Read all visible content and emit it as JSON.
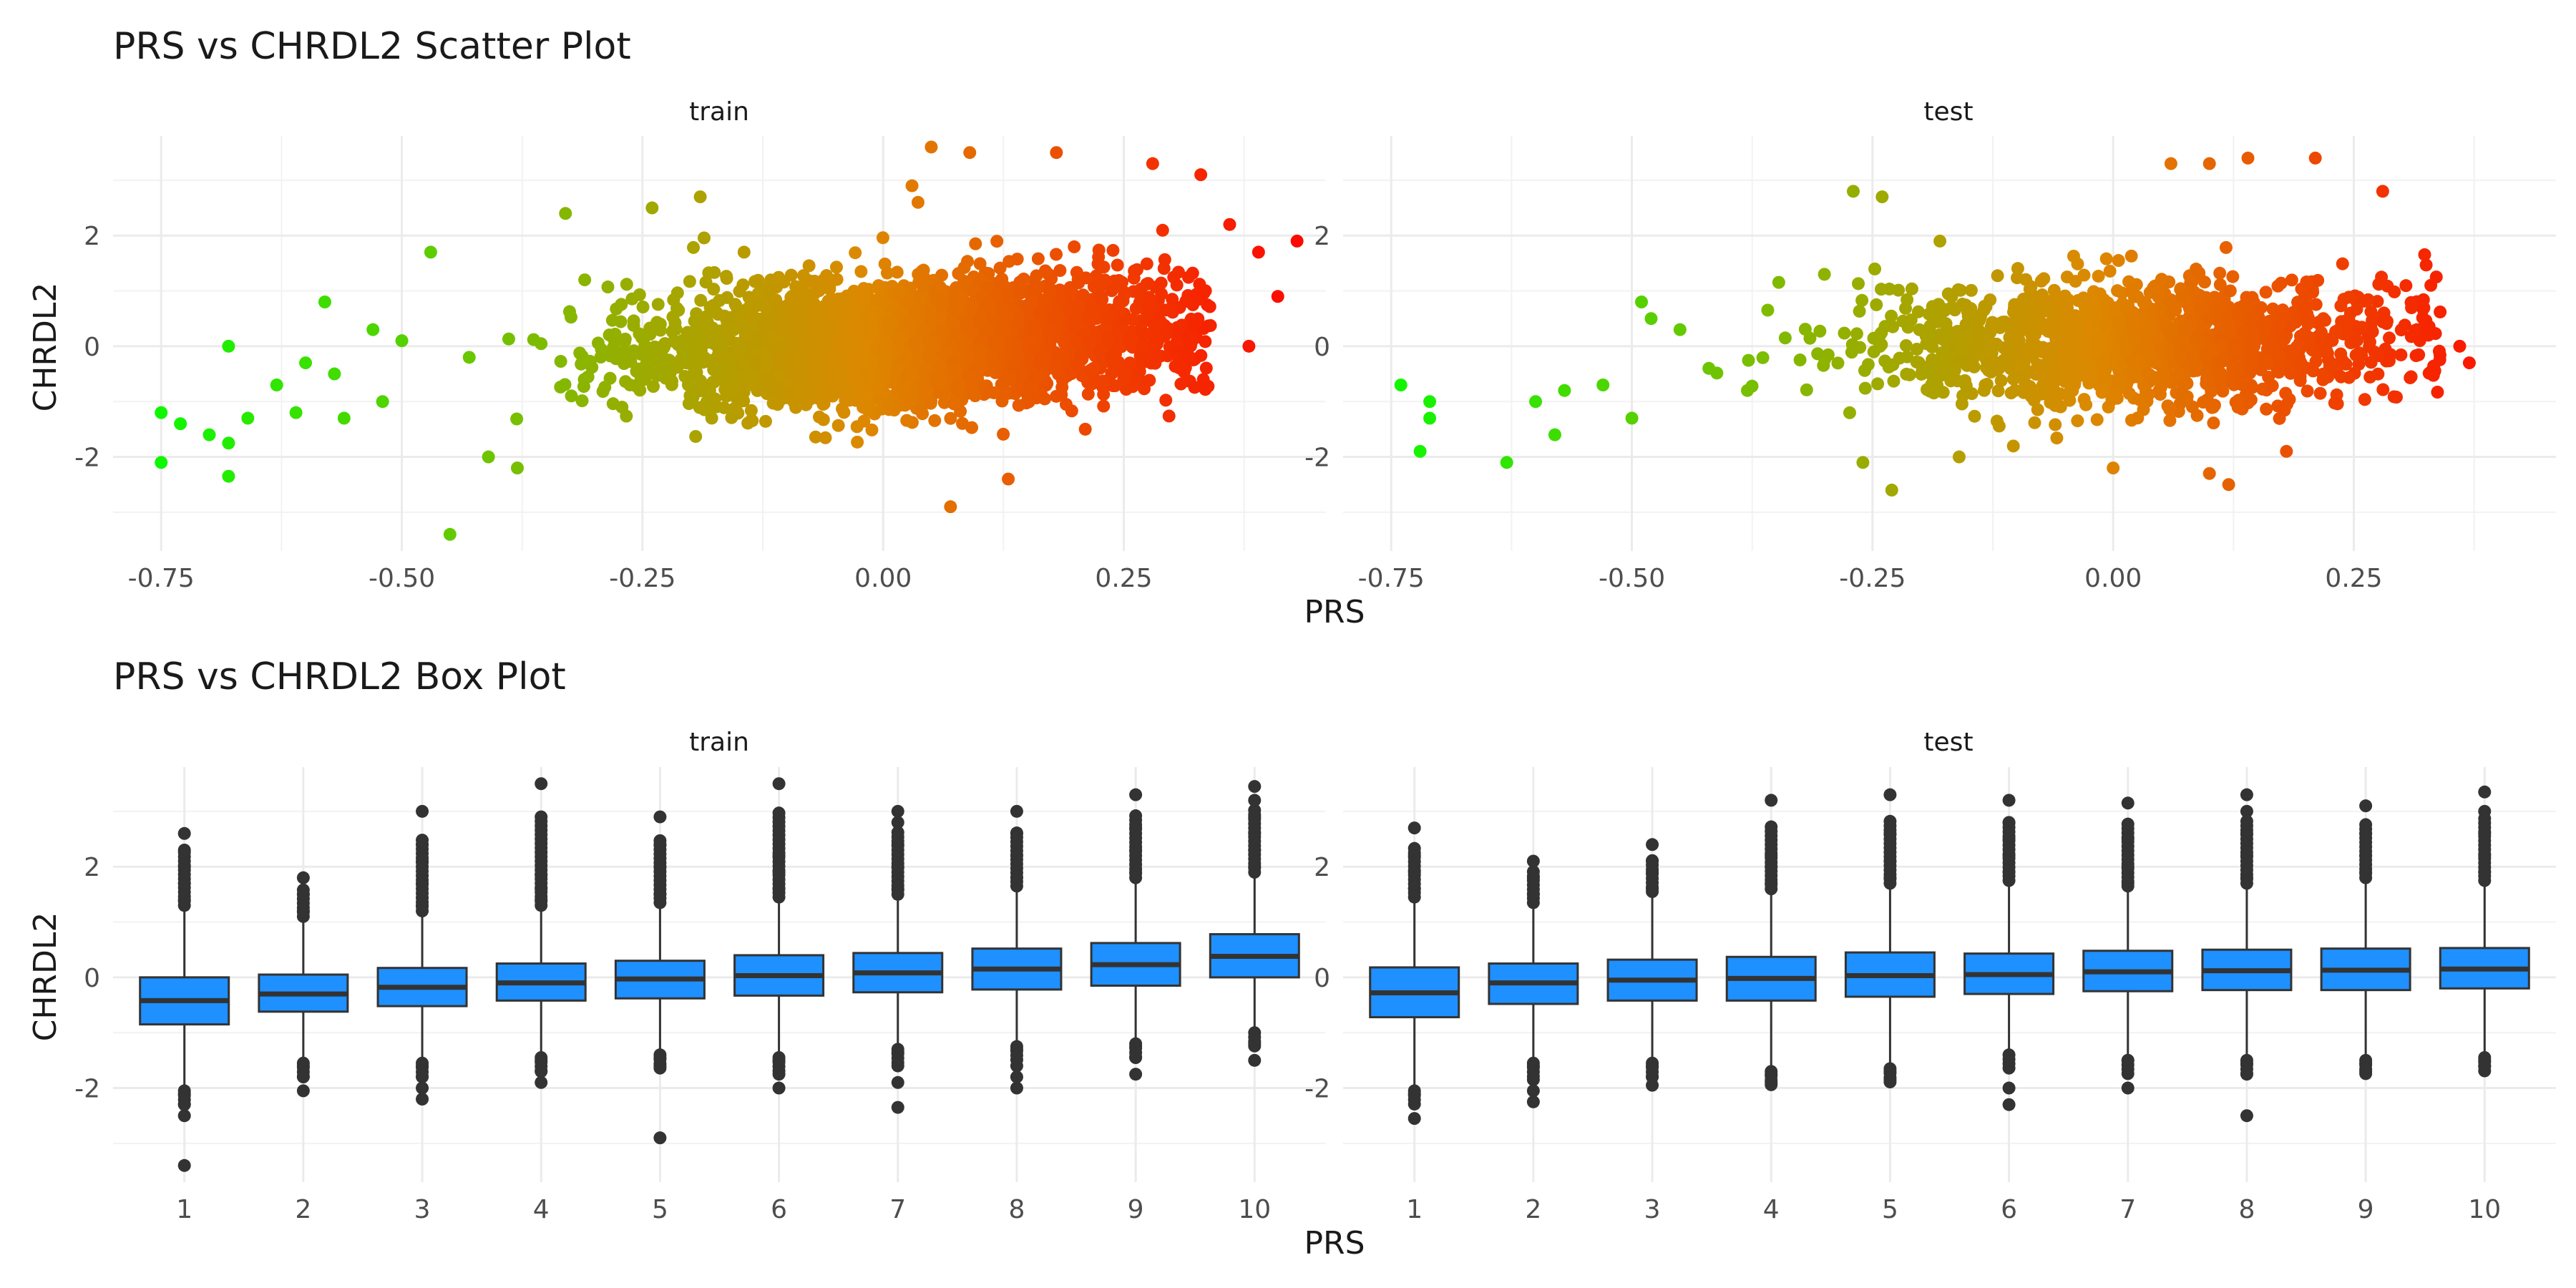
{
  "scatter": {
    "title": "PRS vs CHRDL2 Scatter Plot",
    "xlabel": "PRS",
    "ylabel": "CHRDL2",
    "x_ticks": [
      "-0.75",
      "-0.50",
      "-0.25",
      "0.00",
      "0.25"
    ],
    "y_ticks": [
      "-2",
      "0",
      "2"
    ]
  },
  "box": {
    "title": "PRS vs CHRDL2 Box Plot",
    "xlabel": "PRS",
    "ylabel": "CHRDL2",
    "x_ticks": [
      "1",
      "2",
      "3",
      "4",
      "5",
      "6",
      "7",
      "8",
      "9",
      "10"
    ],
    "y_ticks": [
      "-2",
      "0",
      "2"
    ]
  },
  "colors": {
    "box_fill": "#1E90FF",
    "box_line": "#333333",
    "outlier": "#333333",
    "gradient_low": "#00FF00",
    "gradient_mid": "#DD8800",
    "gradient_high": "#FF0000",
    "grid": "#EBEBEB"
  },
  "chart_data": [
    {
      "type": "scatter",
      "title": "PRS vs CHRDL2 Scatter Plot",
      "xlabel": "PRS",
      "ylabel": "CHRDL2",
      "facet": "train",
      "xlim": [
        -0.8,
        0.46
      ],
      "ylim": [
        -3.7,
        3.8
      ],
      "grid": true,
      "color_by": "x",
      "core_point_count_approx": 7000,
      "points": [
        [
          -0.75,
          -2.1
        ],
        [
          -0.75,
          -1.2
        ],
        [
          -0.73,
          -1.4
        ],
        [
          -0.7,
          -1.6
        ],
        [
          -0.68,
          0.0
        ],
        [
          -0.68,
          -1.75
        ],
        [
          -0.68,
          -2.35
        ],
        [
          -0.66,
          -1.3
        ],
        [
          -0.63,
          -0.7
        ],
        [
          -0.61,
          -1.2
        ],
        [
          -0.6,
          -0.3
        ],
        [
          -0.58,
          0.8
        ],
        [
          -0.57,
          -0.5
        ],
        [
          -0.56,
          -1.3
        ],
        [
          -0.53,
          0.3
        ],
        [
          -0.52,
          -1.0
        ],
        [
          -0.5,
          0.1
        ],
        [
          -0.47,
          1.7
        ],
        [
          -0.45,
          -3.4
        ],
        [
          -0.43,
          -0.2
        ],
        [
          -0.41,
          -2.0
        ],
        [
          -0.38,
          -2.2
        ],
        [
          -0.33,
          2.4
        ],
        [
          -0.31,
          1.2
        ],
        [
          -0.24,
          2.5
        ],
        [
          -0.19,
          2.7
        ],
        [
          0.03,
          2.9
        ],
        [
          0.05,
          3.6
        ],
        [
          0.09,
          3.5
        ],
        [
          0.18,
          3.5
        ],
        [
          0.28,
          3.3
        ],
        [
          0.33,
          3.1
        ],
        [
          0.36,
          2.2
        ],
        [
          0.39,
          1.7
        ],
        [
          0.43,
          1.9
        ],
        [
          0.41,
          0.9
        ],
        [
          0.38,
          0.0
        ],
        [
          0.07,
          -2.9
        ],
        [
          0.13,
          -2.4
        ],
        [
          0.21,
          -1.5
        ]
      ]
    },
    {
      "type": "scatter",
      "title": "PRS vs CHRDL2 Scatter Plot",
      "xlabel": "PRS",
      "ylabel": "CHRDL2",
      "facet": "test",
      "xlim": [
        -0.8,
        0.46
      ],
      "ylim": [
        -3.7,
        3.8
      ],
      "grid": true,
      "color_by": "x",
      "core_point_count_approx": 3500,
      "points": [
        [
          -0.74,
          -0.7
        ],
        [
          -0.71,
          -1.0
        ],
        [
          -0.71,
          -1.3
        ],
        [
          -0.72,
          -1.9
        ],
        [
          -0.63,
          -2.1
        ],
        [
          -0.6,
          -1.0
        ],
        [
          -0.58,
          -1.6
        ],
        [
          -0.57,
          -0.8
        ],
        [
          -0.53,
          -0.7
        ],
        [
          -0.5,
          -1.3
        ],
        [
          -0.49,
          0.8
        ],
        [
          -0.48,
          0.5
        ],
        [
          -0.45,
          0.3
        ],
        [
          -0.42,
          -0.4
        ],
        [
          -0.38,
          -0.8
        ],
        [
          -0.3,
          1.3
        ],
        [
          -0.27,
          2.8
        ],
        [
          -0.24,
          2.7
        ],
        [
          -0.26,
          -2.1
        ],
        [
          -0.23,
          -2.6
        ],
        [
          -0.18,
          1.9
        ],
        [
          -0.16,
          -2.0
        ],
        [
          0.06,
          3.3
        ],
        [
          0.1,
          3.3
        ],
        [
          0.14,
          3.4
        ],
        [
          0.21,
          3.4
        ],
        [
          0.28,
          2.8
        ],
        [
          0.33,
          1.1
        ],
        [
          0.36,
          0.0
        ],
        [
          0.37,
          -0.3
        ],
        [
          0.1,
          -2.3
        ],
        [
          0.12,
          -2.5
        ],
        [
          0.0,
          -2.2
        ],
        [
          0.18,
          -1.9
        ]
      ]
    },
    {
      "type": "box",
      "title": "PRS vs CHRDL2 Box Plot",
      "xlabel": "PRS",
      "ylabel": "CHRDL2",
      "facet": "train",
      "categories": [
        "1",
        "2",
        "3",
        "4",
        "5",
        "6",
        "7",
        "8",
        "9",
        "10"
      ],
      "ylim": [
        -3.7,
        3.8
      ],
      "boxes": [
        {
          "q1": -0.85,
          "median": -0.42,
          "q3": 0.0,
          "lower_whisker": -2.0,
          "upper_whisker": 1.25,
          "outliers_low": [
            -2.1,
            -2.3,
            -2.5,
            -3.4
          ],
          "outliers_high": [
            1.4,
            1.7,
            2.0,
            2.3,
            2.6
          ]
        },
        {
          "q1": -0.62,
          "median": -0.3,
          "q3": 0.05,
          "lower_whisker": -1.5,
          "upper_whisker": 1.05,
          "outliers_low": [
            -1.6,
            -1.8,
            -2.05
          ],
          "outliers_high": [
            1.2,
            1.5,
            1.8
          ]
        },
        {
          "q1": -0.52,
          "median": -0.18,
          "q3": 0.17,
          "lower_whisker": -1.5,
          "upper_whisker": 1.15,
          "outliers_low": [
            -1.6,
            -1.8,
            -2.0,
            -2.2
          ],
          "outliers_high": [
            1.3,
            1.7,
            2.1,
            2.4,
            3.0
          ]
        },
        {
          "q1": -0.42,
          "median": -0.1,
          "q3": 0.25,
          "lower_whisker": -1.4,
          "upper_whisker": 1.25,
          "outliers_low": [
            -1.5,
            -1.7,
            -1.9
          ],
          "outliers_high": [
            1.4,
            1.6,
            1.85,
            3.5
          ]
        },
        {
          "q1": -0.38,
          "median": -0.03,
          "q3": 0.3,
          "lower_whisker": -1.35,
          "upper_whisker": 1.3,
          "outliers_low": [
            -1.45,
            -1.6,
            -2.9
          ],
          "outliers_high": [
            1.5,
            2.0,
            2.4,
            2.9
          ]
        },
        {
          "q1": -0.33,
          "median": 0.03,
          "q3": 0.4,
          "lower_whisker": -1.4,
          "upper_whisker": 1.4,
          "outliers_low": [
            -1.5,
            -1.75,
            -2.0
          ],
          "outliers_high": [
            1.6,
            1.9,
            2.2,
            3.5
          ]
        },
        {
          "q1": -0.27,
          "median": 0.08,
          "q3": 0.44,
          "lower_whisker": -1.25,
          "upper_whisker": 1.45,
          "outliers_low": [
            -1.35,
            -1.6,
            -1.9,
            -2.35
          ],
          "outliers_high": [
            1.6,
            2.0,
            2.4,
            2.8,
            3.0
          ]
        },
        {
          "q1": -0.22,
          "median": 0.15,
          "q3": 0.52,
          "lower_whisker": -1.2,
          "upper_whisker": 1.6,
          "outliers_low": [
            -1.3,
            -1.6,
            -1.8,
            -2.0
          ],
          "outliers_high": [
            1.8,
            2.2,
            2.6,
            3.0
          ]
        },
        {
          "q1": -0.15,
          "median": 0.23,
          "q3": 0.62,
          "lower_whisker": -1.15,
          "upper_whisker": 1.75,
          "outliers_low": [
            -1.25,
            -1.45,
            -1.75
          ],
          "outliers_high": [
            1.9,
            2.3,
            2.7,
            3.3
          ]
        },
        {
          "q1": 0.0,
          "median": 0.38,
          "q3": 0.78,
          "lower_whisker": -0.95,
          "upper_whisker": 1.85,
          "outliers_low": [
            -1.2,
            -1.5
          ],
          "outliers_high": [
            2.0,
            2.3,
            2.6,
            2.9,
            3.2,
            3.45
          ]
        }
      ]
    },
    {
      "type": "box",
      "title": "PRS vs CHRDL2 Box Plot",
      "xlabel": "PRS",
      "ylabel": "CHRDL2",
      "facet": "test",
      "categories": [
        "1",
        "2",
        "3",
        "4",
        "5",
        "6",
        "7",
        "8",
        "9",
        "10"
      ],
      "ylim": [
        -3.7,
        3.8
      ],
      "boxes": [
        {
          "q1": -0.72,
          "median": -0.28,
          "q3": 0.18,
          "lower_whisker": -2.0,
          "upper_whisker": 1.4,
          "outliers_low": [
            -2.1,
            -2.55
          ],
          "outliers_high": [
            1.6,
            1.9,
            2.2,
            2.7
          ]
        },
        {
          "q1": -0.48,
          "median": -0.1,
          "q3": 0.25,
          "lower_whisker": -1.5,
          "upper_whisker": 1.3,
          "outliers_low": [
            -1.6,
            -1.85,
            -2.05,
            -2.25
          ],
          "outliers_high": [
            1.5,
            1.8,
            2.1
          ]
        },
        {
          "q1": -0.42,
          "median": -0.05,
          "q3": 0.32,
          "lower_whisker": -1.5,
          "upper_whisker": 1.5,
          "outliers_low": [
            -1.6,
            -1.8,
            -1.95
          ],
          "outliers_high": [
            1.6,
            1.9,
            2.1,
            2.4
          ]
        },
        {
          "q1": -0.42,
          "median": -0.02,
          "q3": 0.37,
          "lower_whisker": -1.65,
          "upper_whisker": 1.55,
          "outliers_low": [
            -1.75,
            -1.9
          ],
          "outliers_high": [
            1.7,
            2.0,
            2.2,
            3.2
          ]
        },
        {
          "q1": -0.35,
          "median": 0.03,
          "q3": 0.45,
          "lower_whisker": -1.6,
          "upper_whisker": 1.65,
          "outliers_low": [
            -1.7,
            -1.85
          ],
          "outliers_high": [
            1.8,
            2.1,
            2.6,
            3.3
          ]
        },
        {
          "q1": -0.3,
          "median": 0.05,
          "q3": 0.43,
          "lower_whisker": -1.35,
          "upper_whisker": 1.7,
          "outliers_low": [
            -2.0,
            -2.3
          ],
          "outliers_high": [
            1.9,
            2.2,
            2.5,
            2.8,
            3.2
          ]
        },
        {
          "q1": -0.25,
          "median": 0.1,
          "q3": 0.48,
          "lower_whisker": -1.45,
          "upper_whisker": 1.6,
          "outliers_low": [
            -1.5,
            -2.0
          ],
          "outliers_high": [
            1.7,
            2.0,
            2.5,
            3.15
          ]
        },
        {
          "q1": -0.23,
          "median": 0.12,
          "q3": 0.5,
          "lower_whisker": -1.45,
          "upper_whisker": 1.65,
          "outliers_low": [
            -1.55,
            -1.75,
            -2.5
          ],
          "outliers_high": [
            1.8,
            2.2,
            2.6,
            3.0,
            3.3
          ]
        },
        {
          "q1": -0.23,
          "median": 0.13,
          "q3": 0.52,
          "lower_whisker": -1.45,
          "upper_whisker": 1.75,
          "outliers_low": [
            -1.55,
            -1.7
          ],
          "outliers_high": [
            1.9,
            2.2,
            2.6,
            3.1
          ]
        },
        {
          "q1": -0.2,
          "median": 0.15,
          "q3": 0.53,
          "lower_whisker": -1.4,
          "upper_whisker": 1.7,
          "outliers_low": [
            -1.5,
            -1.6
          ],
          "outliers_high": [
            1.9,
            2.2,
            2.6,
            3.0,
            3.35
          ]
        }
      ]
    }
  ],
  "facets": [
    "train",
    "test"
  ]
}
